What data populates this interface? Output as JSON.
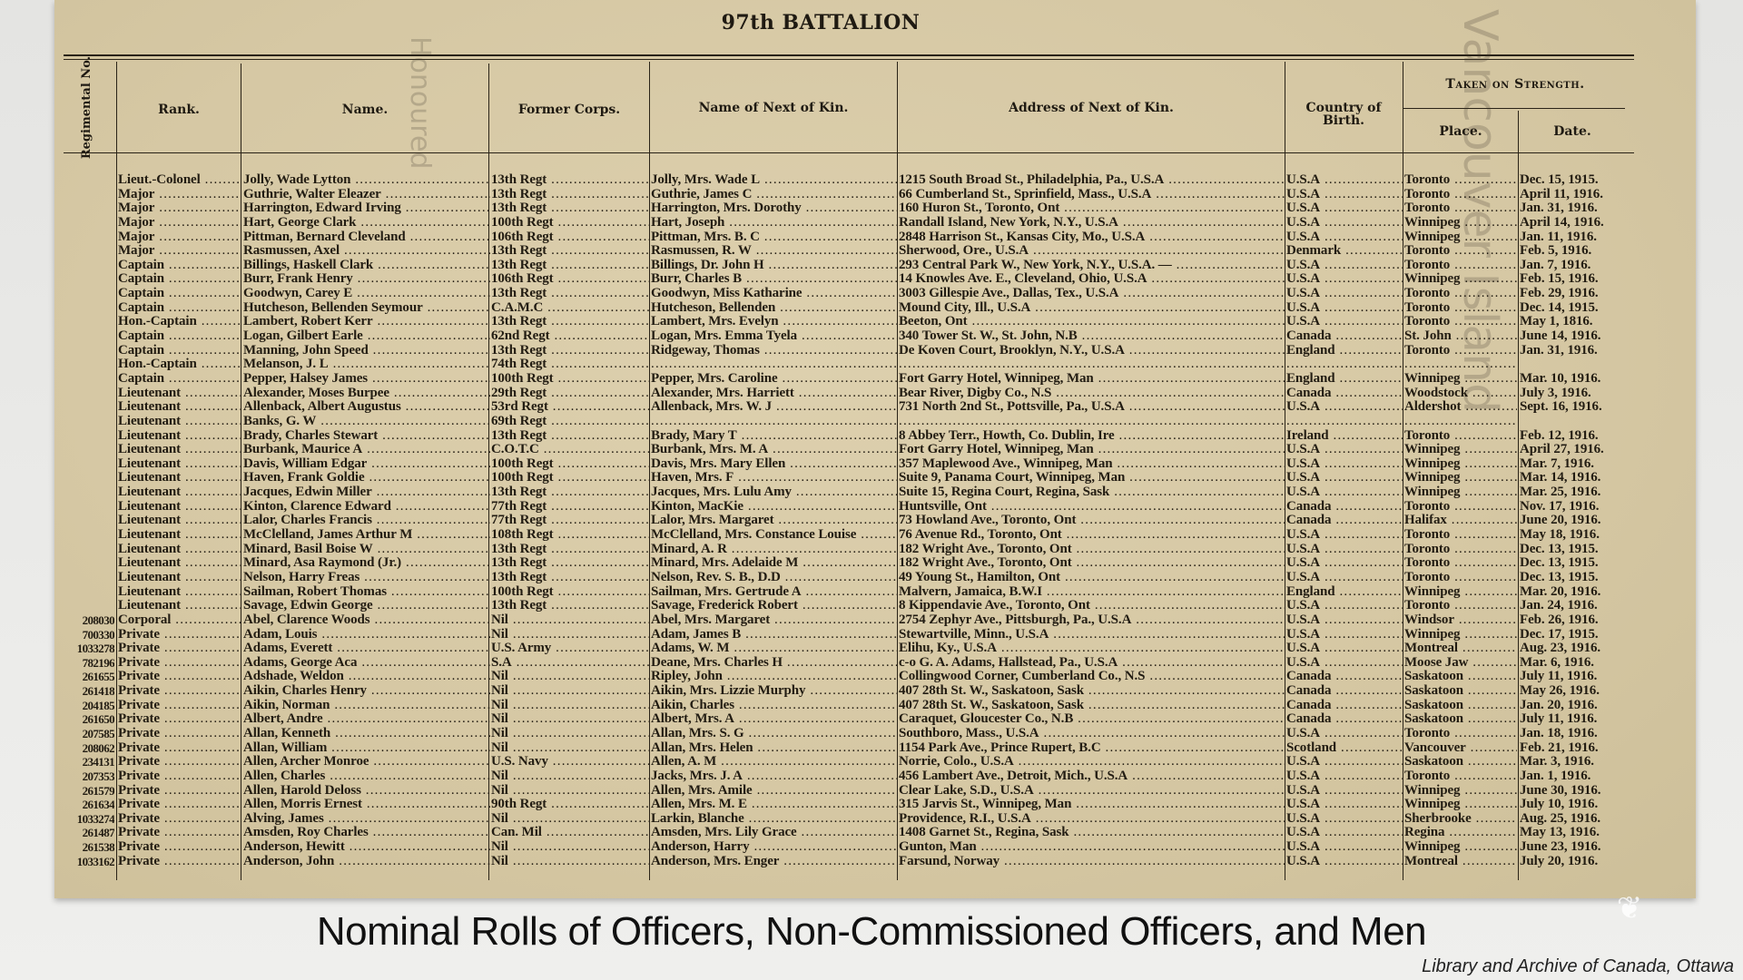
{
  "document": {
    "title": "97th BATTALION",
    "columns": {
      "reg_no": "Regimental No.",
      "rank": "Rank.",
      "name": "Name.",
      "former_corps": "Former Corps.",
      "kin_name": "Name of Next of Kin.",
      "kin_address": "Address of Next of Kin.",
      "country": "Country of Birth.",
      "taken_on_strength": "Taken on Strength.",
      "place": "Place.",
      "date": "Date."
    },
    "rows": [
      {
        "reg": "",
        "rank": "Lieut.-Colonel",
        "name": "Jolly, Wade Lytton",
        "corps": "13th Regt",
        "kin": "Jolly, Mrs. Wade L",
        "addr": "1215 South Broad St., Philadelphia, Pa., U.S.A",
        "country": "U.S.A",
        "place": "Toronto",
        "date": "Dec. 15, 1915."
      },
      {
        "reg": "",
        "rank": "Major",
        "name": "Guthrie, Walter Eleazer",
        "corps": "13th Regt",
        "kin": "Guthrie, James C",
        "addr": "66 Cumberland St., Sprinfield, Mass., U.S.A",
        "country": "U.S.A",
        "place": "Toronto",
        "date": "April 11, 1916."
      },
      {
        "reg": "",
        "rank": "Major",
        "name": "Harrington, Edward Irving",
        "corps": "13th Regt",
        "kin": "Harrington, Mrs. Dorothy",
        "addr": "160 Huron St., Toronto, Ont",
        "country": "U.S.A",
        "place": "Toronto",
        "date": "Jan. 31, 1916."
      },
      {
        "reg": "",
        "rank": "Major",
        "name": "Hart, George Clark",
        "corps": "100th Regt",
        "kin": "Hart, Joseph",
        "addr": "Randall Island, New York, N.Y., U.S.A",
        "country": "U.S.A",
        "place": "Winnipeg",
        "date": "April 14, 1916."
      },
      {
        "reg": "",
        "rank": "Major",
        "name": "Pittman, Bernard Cleveland",
        "corps": "106th Regt",
        "kin": "Pittman, Mrs. B. C",
        "addr": "2848 Harrison St., Kansas City, Mo., U.S.A",
        "country": "U.S.A",
        "place": "Winnipeg",
        "date": "Jan. 11, 1916."
      },
      {
        "reg": "",
        "rank": "Major",
        "name": "Rasmussen, Axel",
        "corps": "13th Regt",
        "kin": "Rasmussen, R. W",
        "addr": "Sherwood, Ore., U.S.A",
        "country": "Denmark",
        "place": "Toronto",
        "date": "Feb. 5, 1916."
      },
      {
        "reg": "",
        "rank": "Captain",
        "name": "Billings, Haskell Clark",
        "corps": "13th Regt",
        "kin": "Billings, Dr. John H",
        "addr": "293 Central Park W., New York, N.Y., U.S.A. —",
        "country": "U.S.A",
        "place": "Toronto",
        "date": "Jan. 7, 1916."
      },
      {
        "reg": "",
        "rank": "Captain",
        "name": "Burr, Frank Henry",
        "corps": "106th Regt",
        "kin": "Burr, Charles B",
        "addr": "14 Knowles Ave. E., Cleveland, Ohio, U.S.A",
        "country": "U.S.A",
        "place": "Winnipeg",
        "date": "Feb. 15, 1916."
      },
      {
        "reg": "",
        "rank": "Captain",
        "name": "Goodwyn, Carey E",
        "corps": "13th Regt",
        "kin": "Goodwyn, Miss Katharine",
        "addr": "3003 Gillespie Ave., Dallas, Tex., U.S.A",
        "country": "U.S.A",
        "place": "Toronto",
        "date": "Feb. 29, 1916."
      },
      {
        "reg": "",
        "rank": "Captain",
        "name": "Hutcheson, Bellenden Seymour",
        "corps": "C.A.M.C",
        "kin": "Hutcheson, Bellenden",
        "addr": "Mound City, Ill., U.S.A",
        "country": "U.S.A",
        "place": "Toronto",
        "date": "Dec. 14, 1915."
      },
      {
        "reg": "",
        "rank": "Hon.-Captain",
        "name": "Lambert, Robert Kerr",
        "corps": "13th Regt",
        "kin": "Lambert, Mrs. Evelyn",
        "addr": "Beeton, Ont",
        "country": "U.S.A",
        "place": "Toronto",
        "date": "May 1, 1816."
      },
      {
        "reg": "",
        "rank": "Captain",
        "name": "Logan, Gilbert Earle",
        "corps": "62nd Regt",
        "kin": "Logan, Mrs. Emma Tyela",
        "addr": "340 Tower St. W., St. John, N.B",
        "country": "Canada",
        "place": "St. John",
        "date": "June 14, 1916."
      },
      {
        "reg": "",
        "rank": "Captain",
        "name": "Manning, John Speed",
        "corps": "13th Regt",
        "kin": "Ridgeway, Thomas",
        "addr": "De Koven Court, Brooklyn, N.Y., U.S.A",
        "country": "England",
        "place": "Toronto",
        "date": "Jan. 31, 1916."
      },
      {
        "reg": "",
        "rank": "Hon.-Captain",
        "name": "Melanson, J. L",
        "corps": "74th Regt",
        "kin": "",
        "addr": "",
        "country": "",
        "place": "",
        "date": ""
      },
      {
        "reg": "",
        "rank": "Captain",
        "name": "Pepper, Halsey James",
        "corps": "100th Regt",
        "kin": "Pepper, Mrs. Caroline",
        "addr": "Fort Garry Hotel, Winnipeg, Man",
        "country": "England",
        "place": "Winnipeg",
        "date": "Mar. 10, 1916."
      },
      {
        "reg": "",
        "rank": "Lieutenant",
        "name": "Alexander, Moses Burpee",
        "corps": "29th Regt",
        "kin": "Alexander, Mrs. Harriett",
        "addr": "Bear River, Digby Co., N.S",
        "country": "Canada",
        "place": "Woodstock",
        "date": "July 3, 1916."
      },
      {
        "reg": "",
        "rank": "Lieutenant",
        "name": "Allenback, Albert Augustus",
        "corps": "53rd Regt",
        "kin": "Allenback, Mrs. W. J",
        "addr": "731 North 2nd St., Pottsville, Pa., U.S.A",
        "country": "U.S.A",
        "place": "Aldershot",
        "date": "Sept. 16, 1916."
      },
      {
        "reg": "",
        "rank": "Lieutenant",
        "name": "Banks, G. W",
        "corps": "69th Regt",
        "kin": "",
        "addr": "",
        "country": "",
        "place": "",
        "date": ""
      },
      {
        "reg": "",
        "rank": "Lieutenant",
        "name": "Brady, Charles Stewart",
        "corps": "13th Regt",
        "kin": "Brady, Mary T",
        "addr": "8 Abbey Terr., Howth, Co. Dublin, Ire",
        "country": "Ireland",
        "place": "Toronto",
        "date": "Feb. 12, 1916."
      },
      {
        "reg": "",
        "rank": "Lieutenant",
        "name": "Burbank, Maurice A",
        "corps": "C.O.T.C",
        "kin": "Burbank, Mrs. M. A",
        "addr": "Fort Garry Hotel, Winnipeg, Man",
        "country": "U.S.A",
        "place": "Winnipeg",
        "date": "April 27, 1916."
      },
      {
        "reg": "",
        "rank": "Lieutenant",
        "name": "Davis, William Edgar",
        "corps": "100th Regt",
        "kin": "Davis, Mrs. Mary Ellen",
        "addr": "357 Maplewood Ave., Winnipeg, Man",
        "country": "U.S.A",
        "place": "Winnipeg",
        "date": "Mar. 7, 1916."
      },
      {
        "reg": "",
        "rank": "Lieutenant",
        "name": "Haven, Frank Goldie",
        "corps": "100th Regt",
        "kin": "Haven, Mrs. F",
        "addr": "Suite 9, Panama Court, Winnipeg, Man",
        "country": "U.S.A",
        "place": "Winnipeg",
        "date": "Mar. 14, 1916."
      },
      {
        "reg": "",
        "rank": "Lieutenant",
        "name": "Jacques, Edwin Miller",
        "corps": "13th Regt",
        "kin": "Jacques, Mrs. Lulu Amy",
        "addr": "Suite 15, Regina Court, Regina, Sask",
        "country": "U.S.A",
        "place": "Winnipeg",
        "date": "Mar. 25, 1916."
      },
      {
        "reg": "",
        "rank": "Lieutenant",
        "name": "Kinton, Clarence Edward",
        "corps": "77th Regt",
        "kin": "Kinton, MacKie",
        "addr": "Huntsville, Ont",
        "country": "Canada",
        "place": "Toronto",
        "date": "Nov. 17, 1916."
      },
      {
        "reg": "",
        "rank": "Lieutenant",
        "name": "Lalor, Charles Francis",
        "corps": "77th Regt",
        "kin": "Lalor, Mrs. Margaret",
        "addr": "73 Howland Ave., Toronto, Ont",
        "country": "Canada",
        "place": "Halifax",
        "date": "June 20, 1916."
      },
      {
        "reg": "",
        "rank": "Lieutenant",
        "name": "McClelland, James Arthur M",
        "corps": "108th Regt",
        "kin": "McClelland, Mrs. Constance Louise",
        "addr": "76 Avenue Rd., Toronto, Ont",
        "country": "U.S.A",
        "place": "Toronto",
        "date": "May 18, 1916."
      },
      {
        "reg": "",
        "rank": "Lieutenant",
        "name": "Minard, Basil Boise W",
        "corps": "13th Regt",
        "kin": "Minard, A. R",
        "addr": "182 Wright Ave., Toronto, Ont",
        "country": "U.S.A",
        "place": "Toronto",
        "date": "Dec. 13, 1915."
      },
      {
        "reg": "",
        "rank": "Lieutenant",
        "name": "Minard, Asa Raymond (Jr.)",
        "corps": "13th Regt",
        "kin": "Minard, Mrs. Adelaide M",
        "addr": "182 Wright Ave., Toronto, Ont",
        "country": "U.S.A",
        "place": "Toronto",
        "date": "Dec. 13, 1915."
      },
      {
        "reg": "",
        "rank": "Lieutenant",
        "name": "Nelson, Harry Freas",
        "corps": "13th Regt",
        "kin": "Nelson, Rev. S. B., D.D",
        "addr": "49 Young St., Hamilton, Ont",
        "country": "U.S.A",
        "place": "Toronto",
        "date": "Dec. 13, 1915."
      },
      {
        "reg": "",
        "rank": "Lieutenant",
        "name": "Sailman, Robert Thomas",
        "corps": "100th Regt",
        "kin": "Sailman, Mrs. Gertrude A",
        "addr": "Malvern, Jamaica, B.W.I",
        "country": "England",
        "place": "Winnipeg",
        "date": "Mar. 20, 1916."
      },
      {
        "reg": "",
        "rank": "Lieutenant",
        "name": "Savage, Edwin George",
        "corps": "13th Regt",
        "kin": "Savage, Frederick Robert",
        "addr": "8 Kippendavie Ave., Toronto, Ont",
        "country": "U.S.A",
        "place": "Toronto",
        "date": "Jan. 24, 1916."
      },
      {
        "reg": "208030",
        "rank": "Corporal",
        "name": "Abel, Clarence Woods",
        "corps": "Nil",
        "kin": "Abel, Mrs. Margaret",
        "addr": "2754 Zephyr Ave., Pittsburgh, Pa., U.S.A",
        "country": "U.S.A",
        "place": "Windsor",
        "date": "Feb. 26, 1916."
      },
      {
        "reg": "700330",
        "rank": "Private",
        "name": "Adam, Louis",
        "corps": "Nil",
        "kin": "Adam, James B",
        "addr": "Stewartville, Minn., U.S.A",
        "country": "U.S.A",
        "place": "Winnipeg",
        "date": "Dec. 17, 1915."
      },
      {
        "reg": "1033278",
        "rank": "Private",
        "name": "Adams, Everett",
        "corps": "U.S. Army",
        "kin": "Adams, W. M",
        "addr": "Elihu, Ky., U.S.A",
        "country": "U.S.A",
        "place": "Montreal",
        "date": "Aug. 23, 1916."
      },
      {
        "reg": "782196",
        "rank": "Private",
        "name": "Adams, George Aca",
        "corps": "S.A",
        "kin": "Deane, Mrs. Charles H",
        "addr": "c-o G. A. Adams, Hallstead, Pa., U.S.A",
        "country": "U.S.A",
        "place": "Moose Jaw",
        "date": "Mar. 6, 1916."
      },
      {
        "reg": "261655",
        "rank": "Private",
        "name": "Adshade, Weldon",
        "corps": "Nil",
        "kin": "Ripley, John",
        "addr": "Collingwood Corner, Cumberland Co., N.S",
        "country": "Canada",
        "place": "Saskatoon",
        "date": "July 11, 1916."
      },
      {
        "reg": "261418",
        "rank": "Private",
        "name": "Aikin, Charles Henry",
        "corps": "Nil",
        "kin": "Aikin, Mrs. Lizzie Murphy",
        "addr": "407 28th St. W., Saskatoon, Sask",
        "country": "Canada",
        "place": "Saskatoon",
        "date": "May 26, 1916."
      },
      {
        "reg": "204185",
        "rank": "Private",
        "name": "Aikin, Norman",
        "corps": "Nil",
        "kin": "Aikin, Charles",
        "addr": "407 28th St. W., Saskatoon, Sask",
        "country": "Canada",
        "place": "Saskatoon",
        "date": "Jan. 20, 1916."
      },
      {
        "reg": "261650",
        "rank": "Private",
        "name": "Albert, Andre",
        "corps": "Nil",
        "kin": "Albert, Mrs. A",
        "addr": "Caraquet, Gloucester Co., N.B",
        "country": "Canada",
        "place": "Saskatoon",
        "date": "July 11, 1916."
      },
      {
        "reg": "207585",
        "rank": "Private",
        "name": "Allan, Kenneth",
        "corps": "Nil",
        "kin": "Allan, Mrs. S. G",
        "addr": "Southboro, Mass., U.S.A",
        "country": "U.S.A",
        "place": "Toronto",
        "date": "Jan. 18, 1916."
      },
      {
        "reg": "208062",
        "rank": "Private",
        "name": "Allan, William",
        "corps": "Nil",
        "kin": "Allan, Mrs. Helen",
        "addr": "1154 Park Ave., Prince Rupert, B.C",
        "country": "Scotland",
        "place": "Vancouver",
        "date": "Feb. 21, 1916."
      },
      {
        "reg": "234131",
        "rank": "Private",
        "name": "Allen, Archer Monroe",
        "corps": "U.S. Navy",
        "kin": "Allen, A. M",
        "addr": "Norrie, Colo., U.S.A",
        "country": "U.S.A",
        "place": "Saskatoon",
        "date": "Mar. 3, 1916."
      },
      {
        "reg": "207353",
        "rank": "Private",
        "name": "Allen, Charles",
        "corps": "Nil",
        "kin": "Jacks, Mrs. J. A",
        "addr": "456 Lambert Ave., Detroit, Mich., U.S.A",
        "country": "U.S.A",
        "place": "Toronto",
        "date": "Jan. 1, 1916."
      },
      {
        "reg": "261579",
        "rank": "Private",
        "name": "Allen, Harold Deloss",
        "corps": "Nil",
        "kin": "Allen, Mrs. Amile",
        "addr": "Clear Lake, S.D., U.S.A",
        "country": "U.S.A",
        "place": "Winnipeg",
        "date": "June 30, 1916."
      },
      {
        "reg": "261634",
        "rank": "Private",
        "name": "Allen, Morris Ernest",
        "corps": "90th Regt",
        "kin": "Allen, Mrs. M. E",
        "addr": "315 Jarvis St., Winnipeg, Man",
        "country": "U.S.A",
        "place": "Winnipeg",
        "date": "July 10, 1916."
      },
      {
        "reg": "1033274",
        "rank": "Private",
        "name": "Alving, James",
        "corps": "Nil",
        "kin": "Larkin, Blanche",
        "addr": "Providence, R.I., U.S.A",
        "country": "U.S.A",
        "place": "Sherbrooke",
        "date": "Aug. 25, 1916."
      },
      {
        "reg": "261487",
        "rank": "Private",
        "name": "Amsden, Roy Charles",
        "corps": "Can. Mil",
        "kin": "Amsden, Mrs. Lily Grace",
        "addr": "1408 Garnet St., Regina, Sask",
        "country": "U.S.A",
        "place": "Regina",
        "date": "May 13, 1916."
      },
      {
        "reg": "261538",
        "rank": "Private",
        "name": "Anderson, Hewitt",
        "corps": "Nil",
        "kin": "Anderson, Harry",
        "addr": "Gunton, Man",
        "country": "U.S.A",
        "place": "Winnipeg",
        "date": "June 23, 1916."
      },
      {
        "reg": "1033162",
        "rank": "Private",
        "name": "Anderson, John",
        "corps": "Nil",
        "kin": "Anderson, Mrs. Enger",
        "addr": "Farsund, Norway",
        "country": "U.S.A",
        "place": "Montreal",
        "date": "July 20, 1916."
      }
    ]
  },
  "slide": {
    "caption": "Nominal Rolls of Officers, Non-Commissioned Officers, and Men",
    "credit": "Library and Archive of Canada, Ottawa"
  }
}
